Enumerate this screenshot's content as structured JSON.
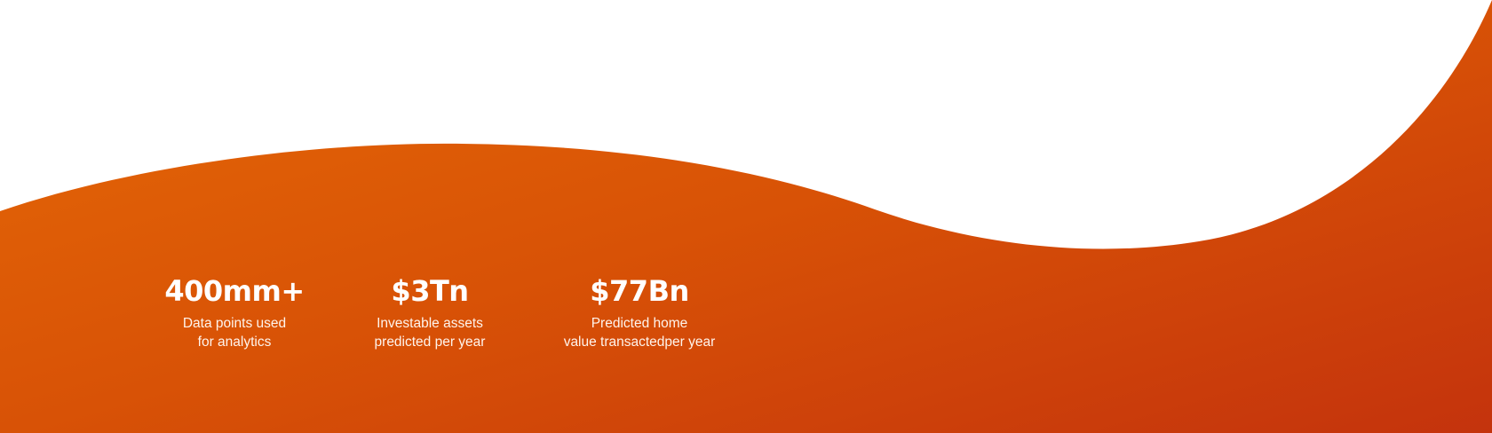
{
  "colors": {
    "background": "#ffffff",
    "gradient_start": "#e26407",
    "gradient_end": "#c6360c",
    "text": "#ffffff"
  },
  "stats": [
    {
      "value": "400mm+",
      "desc_line1": "Data points used",
      "desc_line2": "for analytics"
    },
    {
      "value": "$3Tn",
      "desc_line1": "Investable assets",
      "desc_line2": "predicted per year"
    },
    {
      "value": "$77Bn",
      "desc_line1": "Predicted home",
      "desc_line2": "value transactedper year"
    }
  ]
}
